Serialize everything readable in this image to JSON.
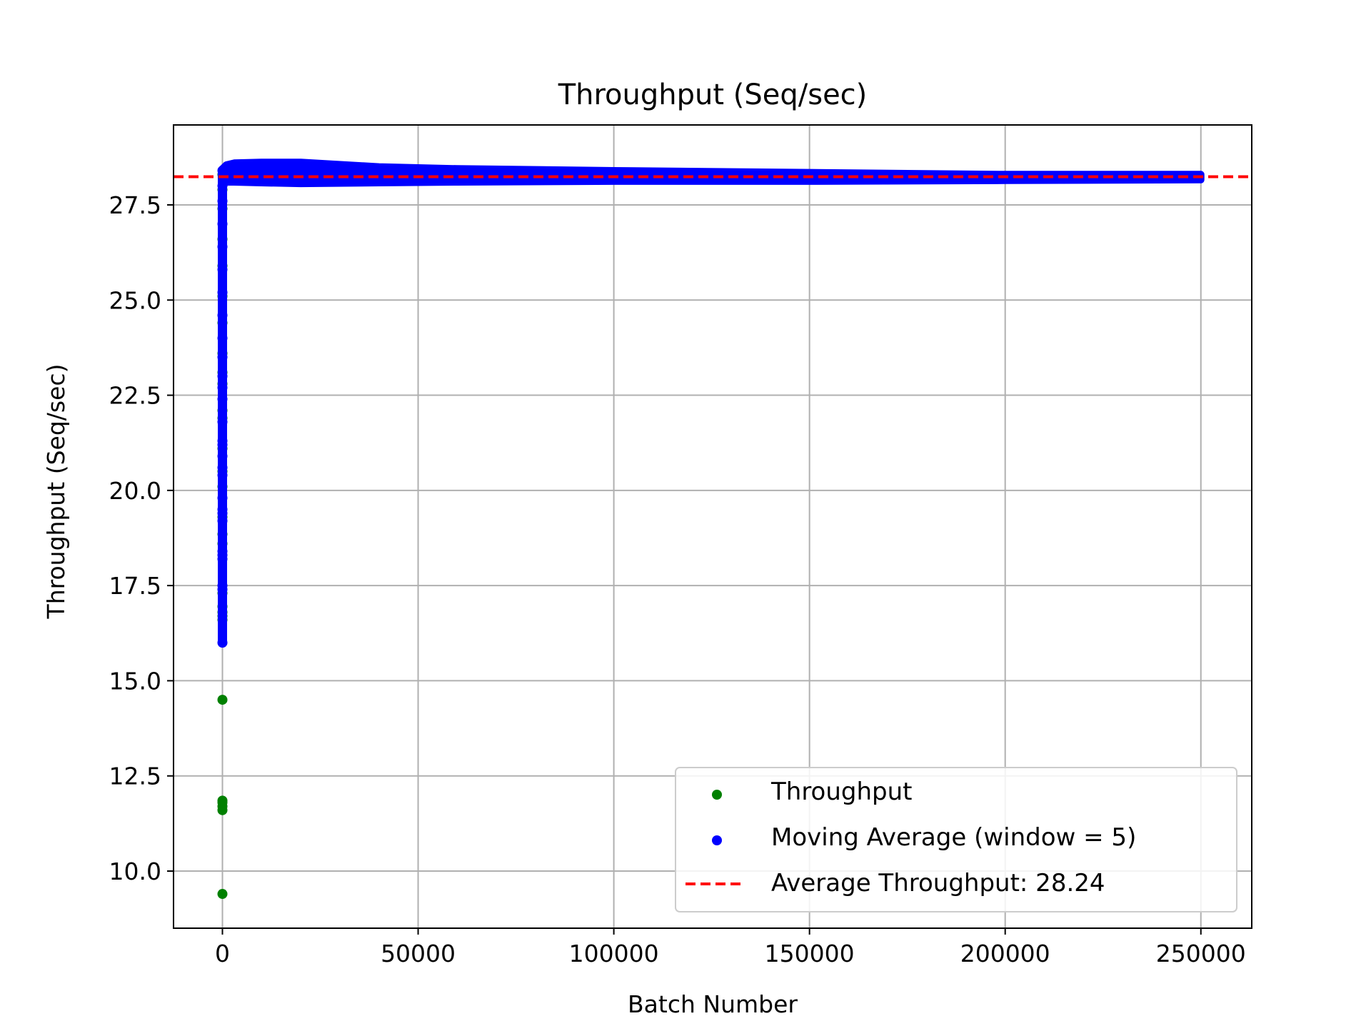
{
  "chart_data": {
    "type": "scatter",
    "title": "Throughput (Seq/sec)",
    "xlabel": "Batch Number",
    "ylabel": "Throughput (Seq/sec)",
    "xlim": [
      -12500,
      263000
    ],
    "ylim": [
      8.5,
      29.6
    ],
    "xticks": [
      0,
      50000,
      100000,
      150000,
      200000,
      250000
    ],
    "xtick_labels": [
      "0",
      "50000",
      "100000",
      "150000",
      "200000",
      "250000"
    ],
    "yticks": [
      10.0,
      12.5,
      15.0,
      17.5,
      20.0,
      22.5,
      25.0,
      27.5
    ],
    "ytick_labels": [
      "10.0",
      "12.5",
      "15.0",
      "17.5",
      "20.0",
      "22.5",
      "25.0",
      "27.5"
    ],
    "grid": true,
    "legend_position": "lower-right",
    "series": [
      {
        "name": "Throughput",
        "kind": "scatter",
        "color": "#008000",
        "points": [
          [
            0,
            9.4
          ],
          [
            0,
            11.6
          ],
          [
            0,
            11.7
          ],
          [
            0,
            11.8
          ],
          [
            0,
            11.85
          ],
          [
            0,
            14.5
          ],
          [
            0,
            16.6
          ],
          [
            0,
            16.7
          ],
          [
            0,
            16.8
          ],
          [
            0,
            16.95
          ],
          [
            0,
            17.3
          ],
          [
            0,
            18.6
          ],
          [
            0,
            18.85
          ],
          [
            0,
            19.3
          ],
          [
            0,
            20.1
          ],
          [
            0,
            20.5
          ],
          [
            0,
            21.1
          ],
          [
            0,
            21.9
          ],
          [
            0,
            22.1
          ],
          [
            0,
            22.8
          ],
          [
            0,
            23.1
          ],
          [
            0,
            23.6
          ],
          [
            0,
            24.4
          ],
          [
            0,
            25.1
          ],
          [
            0,
            25.9
          ],
          [
            0,
            26.6
          ],
          [
            0,
            27.4
          ],
          [
            0,
            27.9
          ],
          [
            0,
            28.3
          ]
        ]
      },
      {
        "name": "Moving Average (window = 5)",
        "kind": "scatter",
        "color": "#0000ff",
        "points": [
          [
            0,
            16.0
          ],
          [
            0,
            17.4
          ],
          [
            0,
            17.5
          ],
          [
            0,
            18.2
          ],
          [
            0,
            18.3
          ],
          [
            0,
            18.4
          ],
          [
            0,
            19.2
          ],
          [
            0,
            19.4
          ],
          [
            0,
            19.5
          ],
          [
            0,
            19.8
          ],
          [
            0,
            20.4
          ],
          [
            0,
            20.6
          ],
          [
            0,
            20.9
          ],
          [
            0,
            21.2
          ],
          [
            0,
            21.3
          ],
          [
            0,
            21.8
          ],
          [
            0,
            22.4
          ],
          [
            0,
            22.7
          ],
          [
            0,
            23.0
          ],
          [
            0,
            23.5
          ],
          [
            0,
            24.0
          ],
          [
            0,
            24.6
          ],
          [
            0,
            25.2
          ],
          [
            0,
            25.8
          ],
          [
            0,
            26.4
          ],
          [
            0,
            27.0
          ],
          [
            0,
            27.6
          ],
          [
            0,
            28.0
          ],
          [
            0,
            28.4
          ]
        ],
        "band": {
          "x": [
            0,
            1000,
            3000,
            10000,
            20000,
            40000,
            60000,
            100000,
            150000,
            200000,
            250000
          ],
          "upper": [
            28.45,
            28.55,
            28.6,
            28.62,
            28.62,
            28.5,
            28.45,
            28.4,
            28.35,
            28.3,
            28.3
          ],
          "lower": [
            28.0,
            28.1,
            28.1,
            28.08,
            28.06,
            28.08,
            28.1,
            28.12,
            28.12,
            28.14,
            28.16
          ]
        }
      },
      {
        "name": "Average Throughput: 28.24",
        "kind": "hline",
        "color": "#ff0000",
        "style": "dashed",
        "y": 28.24
      }
    ]
  }
}
